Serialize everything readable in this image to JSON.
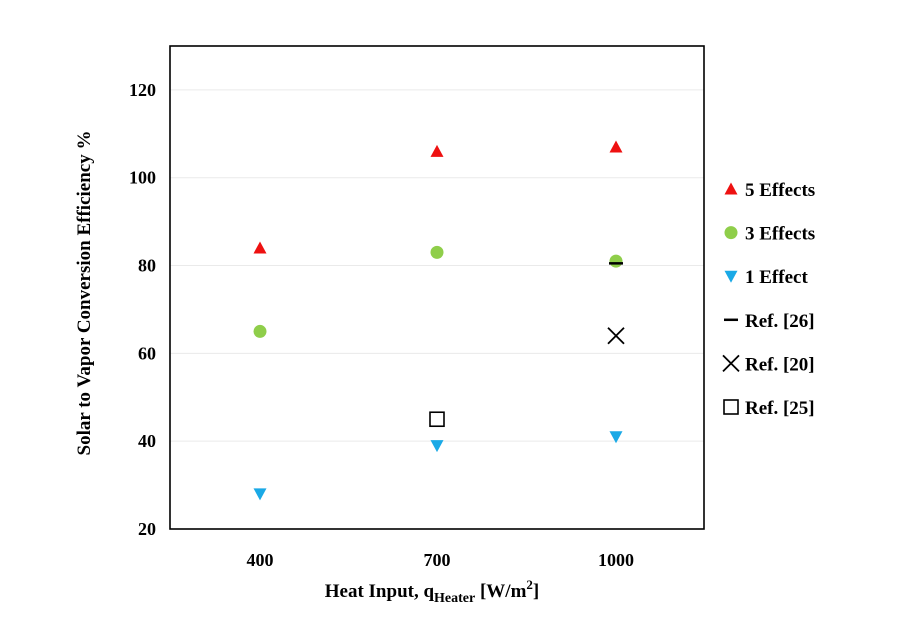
{
  "chart_data": {
    "type": "scatter",
    "title": "",
    "xlabel": "Heat Input, q",
    "xlabel_subscript": "Heater",
    "xlabel_unit": " [W/m",
    "xlabel_unit_sup": "2",
    "xlabel_unit_end": "]",
    "ylabel": "Solar to Vapor Conversion Efficiency %",
    "categories": [
      "400",
      "700",
      "1000"
    ],
    "ylim": [
      20,
      130
    ],
    "yticks": [
      20,
      40,
      60,
      80,
      100,
      120
    ],
    "grid": true,
    "legend_position": "right",
    "series": [
      {
        "name": "5 Effects",
        "marker": "triangle-up",
        "color": "#ee1111",
        "values": [
          84,
          106,
          107
        ]
      },
      {
        "name": "3 Effects",
        "marker": "circle",
        "color": "#8fce4a",
        "values": [
          65,
          83,
          81
        ]
      },
      {
        "name": "1 Effect",
        "marker": "triangle-down",
        "color": "#1aa9e6",
        "values": [
          28,
          39,
          41
        ]
      },
      {
        "name": "Ref. [26]",
        "marker": "dash",
        "color": "#000000",
        "values": [
          null,
          null,
          80.5
        ]
      },
      {
        "name": "Ref. [20]",
        "marker": "x",
        "color": "#000000",
        "values": [
          null,
          null,
          64
        ]
      },
      {
        "name": "Ref. [25]",
        "marker": "square-open",
        "color": "#000000",
        "values": [
          null,
          45,
          null
        ]
      }
    ]
  }
}
